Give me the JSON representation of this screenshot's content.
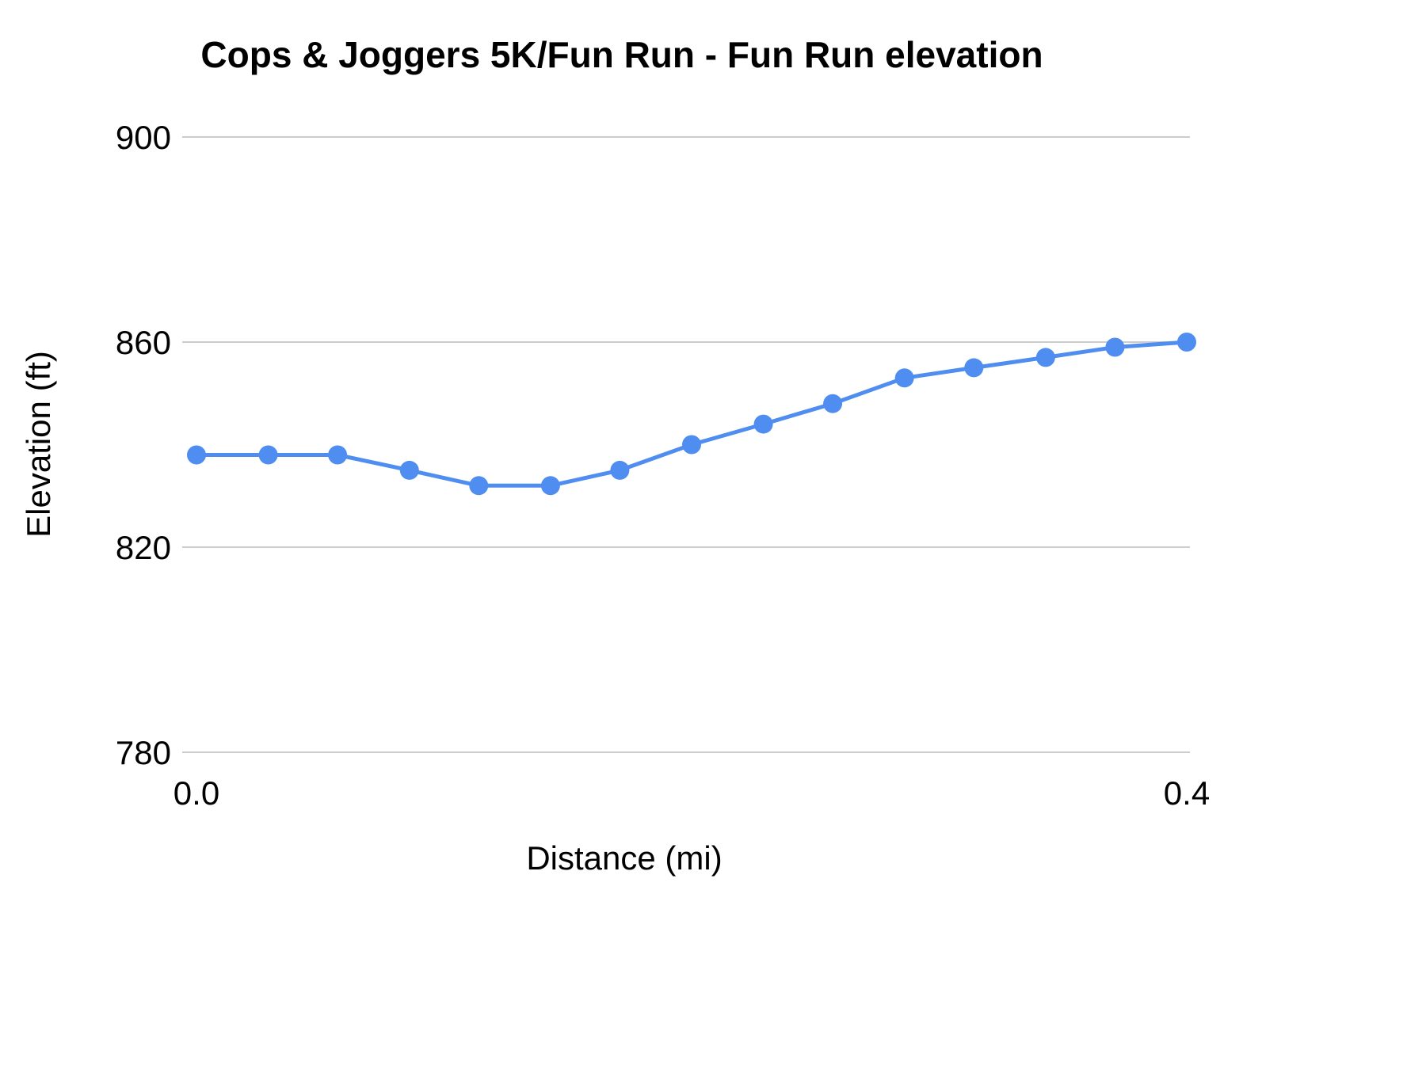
{
  "chart_data": {
    "type": "line",
    "title": "Cops & Joggers 5K/Fun Run - Fun Run elevation",
    "xlabel": "Distance (mi)",
    "ylabel": "Elevation (ft)",
    "x": [
      0.0,
      0.029,
      0.057,
      0.086,
      0.114,
      0.143,
      0.171,
      0.2,
      0.229,
      0.257,
      0.286,
      0.314,
      0.343,
      0.371,
      0.4
    ],
    "y": [
      838,
      838,
      838,
      835,
      832,
      832,
      835,
      840,
      844,
      848,
      853,
      855,
      857,
      859,
      860
    ],
    "xlim": [
      0.0,
      0.4
    ],
    "ylim": [
      780,
      900
    ],
    "yticks": [
      780,
      820,
      860,
      900
    ],
    "ytick_labels": [
      "780",
      "820",
      "860",
      "900"
    ],
    "xticks": [
      0.0,
      0.4
    ],
    "xtick_labels": [
      "0.0",
      "0.4"
    ],
    "grid": true,
    "legend_position": "none",
    "line_color": "#4f8ef0",
    "marker_color": "#4f8ef0",
    "gridline_color": "#cccccc",
    "background_color": "#ffffff"
  }
}
